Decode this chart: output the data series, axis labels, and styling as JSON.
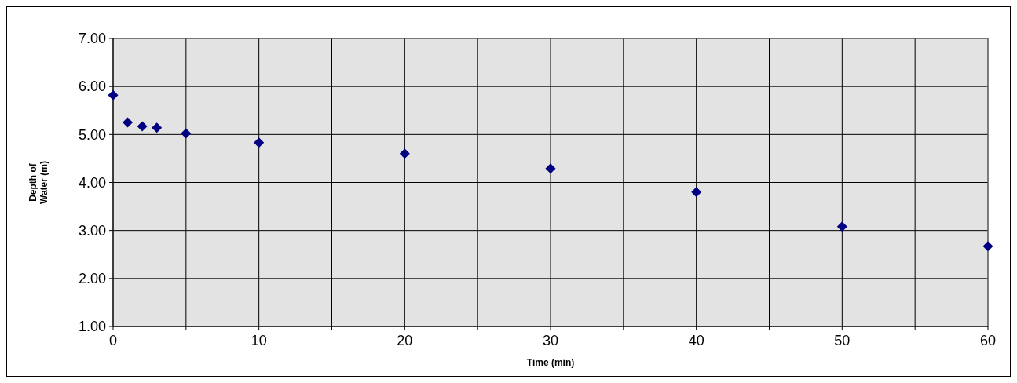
{
  "chart_data": {
    "type": "scatter",
    "xlabel": "Time (min)",
    "ylabel": "Depth of Water (m)",
    "x": [
      0,
      1,
      2,
      3,
      5,
      10,
      20,
      30,
      40,
      50,
      60
    ],
    "series": [
      {
        "color": "#000080",
        "values": [
          5.82,
          5.25,
          5.17,
          5.14,
          5.02,
          4.83,
          4.6,
          4.29,
          3.8,
          3.08,
          2.67
        ]
      }
    ],
    "xlim": [
      0,
      60
    ],
    "xticks": [
      0,
      {
        "value": 5,
        "label": null
      },
      10,
      {
        "value": 15,
        "label": null
      },
      20,
      {
        "value": 25,
        "label": null
      },
      30,
      {
        "value": 35,
        "label": null
      },
      40,
      {
        "value": 45,
        "label": null
      },
      50,
      {
        "value": 55,
        "label": null
      },
      60
    ],
    "ylim": [
      1,
      7
    ],
    "yticks": [
      {
        "value": 1,
        "label": "1.00"
      },
      {
        "value": 2,
        "label": "2.00"
      },
      {
        "value": 3,
        "label": "3.00"
      },
      {
        "value": 4,
        "label": "4.00"
      },
      {
        "value": 5,
        "label": "5.00"
      },
      {
        "value": 6,
        "label": "6.00"
      },
      {
        "value": 7,
        "label": "7.00"
      }
    ],
    "grid": true,
    "marker": "diamond"
  }
}
